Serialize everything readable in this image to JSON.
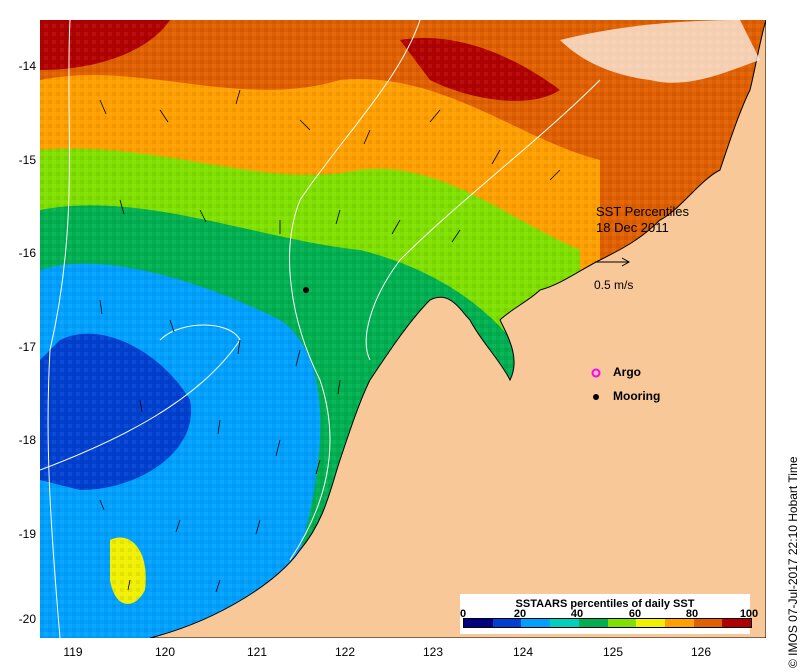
{
  "map": {
    "x_ticks": [
      "119",
      "120",
      "121",
      "122",
      "123",
      "124",
      "125",
      "126"
    ],
    "y_ticks": [
      "-14",
      "-15",
      "-16",
      "-17",
      "-18",
      "-19",
      "-20"
    ],
    "land_color": "#f8c898",
    "water_color": "#ffffff"
  },
  "title": {
    "line1": "SST Percentiles",
    "line2": "18 Dec 2011"
  },
  "current_scale": {
    "label": "0.5 m/s"
  },
  "legend": {
    "argo": "Argo",
    "mooring": "Mooring",
    "argo_color": "#ff00ff",
    "mooring_color": "#000000"
  },
  "colorbar": {
    "title": "SSTAARS percentiles of daily SST",
    "ticks": [
      "0",
      "20",
      "40",
      "60",
      "80",
      "100"
    ],
    "colors": [
      "#000080",
      "#0040d0",
      "#00a0ff",
      "#00d0c0",
      "#00b050",
      "#80e000",
      "#f0f000",
      "#ffa000",
      "#e06000",
      "#b00000"
    ]
  },
  "credit": "© IMOS 07-Jul-2017 22:10 Hobart Time"
}
